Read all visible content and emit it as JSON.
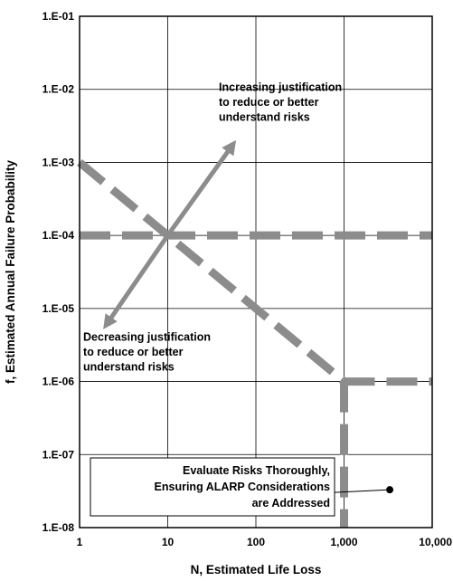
{
  "chart_data": {
    "type": "line",
    "xlabel": "N, Estimated Life Loss",
    "ylabel": "f, Estimated Annual Failure Probability",
    "x_scale": "log",
    "y_scale": "log",
    "xlim": [
      1,
      10000
    ],
    "ylim": [
      1e-08,
      0.1
    ],
    "x_ticks": [
      {
        "v": 1,
        "label": "1"
      },
      {
        "v": 10,
        "label": "10"
      },
      {
        "v": 100,
        "label": "100"
      },
      {
        "v": 1000,
        "label": "1,000"
      },
      {
        "v": 10000,
        "label": "10,000"
      }
    ],
    "y_ticks": [
      {
        "v": 1e-08,
        "label": "1.E-08"
      },
      {
        "v": 1e-07,
        "label": "1.E-07"
      },
      {
        "v": 1e-06,
        "label": "1.E-06"
      },
      {
        "v": 1e-05,
        "label": "1.E-05"
      },
      {
        "v": 0.0001,
        "label": "1.E-04"
      },
      {
        "v": 0.001,
        "label": "1.E-03"
      },
      {
        "v": 0.01,
        "label": "1.E-02"
      },
      {
        "v": 0.1,
        "label": "1.E-01"
      }
    ],
    "grid": true,
    "line_color": "#8c8c8c",
    "lines": [
      {
        "x": [
          1,
          10000
        ],
        "y": [
          0.0001,
          0.0001
        ]
      },
      {
        "x": [
          1,
          1000
        ],
        "y": [
          0.001,
          1e-06
        ]
      },
      {
        "x": [
          1000,
          10000
        ],
        "y": [
          1e-06,
          1e-06
        ]
      },
      {
        "x": [
          1000,
          1000
        ],
        "y": [
          1e-06,
          1e-08
        ]
      }
    ],
    "arrows": [
      {
        "from": [
          10,
          0.0001
        ],
        "to": [
          50,
          0.0015
        ]
      },
      {
        "from": [
          10,
          0.0001
        ],
        "to": [
          2.2,
          7e-06
        ]
      }
    ],
    "annotations": [
      {
        "lines": [
          "Increasing justification",
          "to reduce or better",
          "understand risks"
        ],
        "x": 38,
        "y": 0.0095
      },
      {
        "lines": [
          "Decreasing justification",
          "to reduce or better",
          "understand risks"
        ],
        "x": 1.1,
        "y": 3.6e-06
      }
    ],
    "callout": {
      "lines": [
        "Evaluate Risks Thoroughly,",
        "Ensuring ALARP Considerations",
        "are Addressed"
      ],
      "point": [
        3300,
        3.3e-08
      ]
    }
  }
}
